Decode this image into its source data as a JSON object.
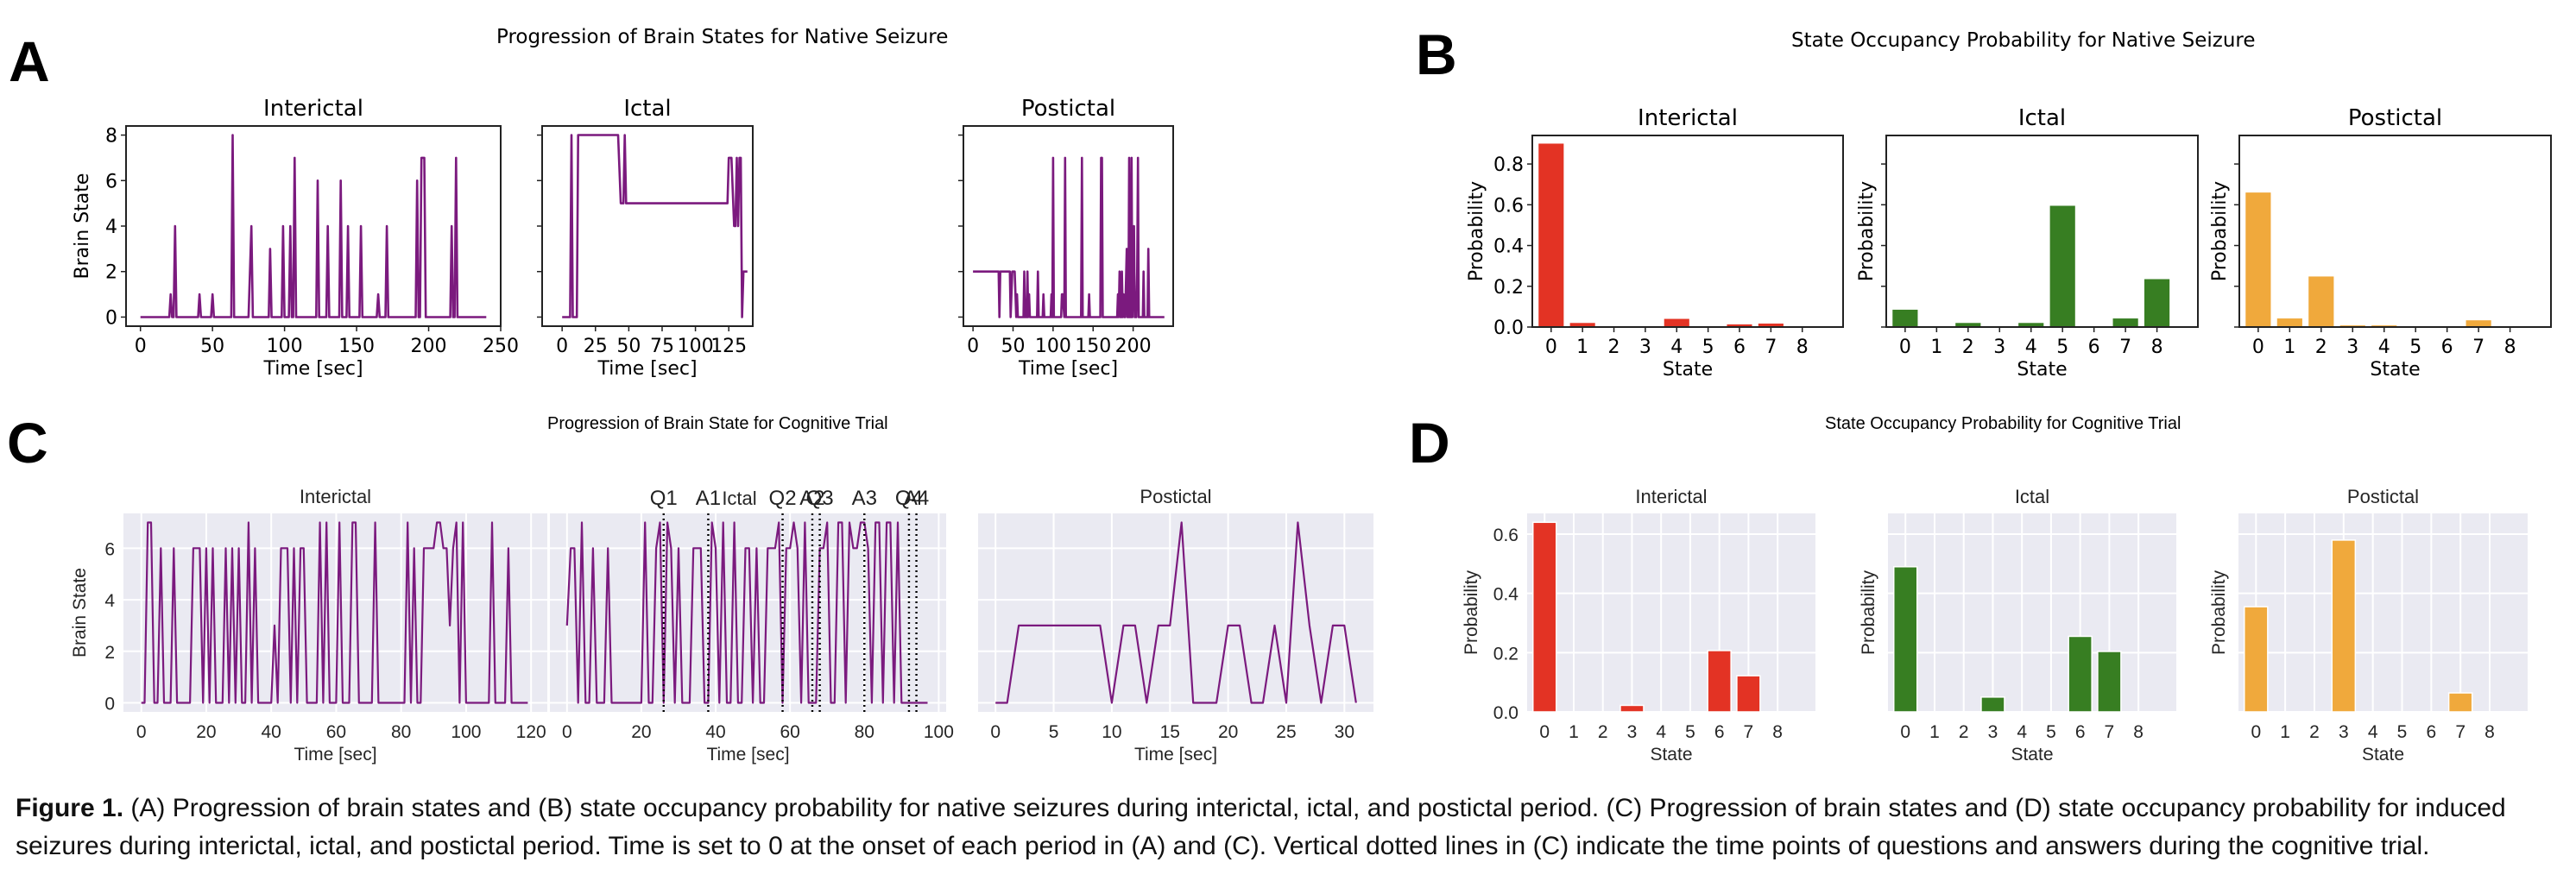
{
  "panels": {
    "A": {
      "letter": "A",
      "title": "Progression of Brain States for Native Seizure"
    },
    "B": {
      "letter": "B",
      "title": "State Occupancy Probability for Native Seizure"
    },
    "C": {
      "letter": "C",
      "title": "Progression of Brain State for Cognitive Trial"
    },
    "D": {
      "letter": "D",
      "title": "State Occupancy Probability for Cognitive Trial"
    }
  },
  "caption": {
    "label": "Figure 1.",
    "text": " (A) Progression of brain states and (B) state occupancy probability for native seizures during interictal, ictal, and postictal period. (C) Progression of brain states and (D) state occupancy probability for induced seizures during interictal, ictal, and postictal period. Time is set to 0 at the onset of each period in (A) and (C). Vertical dotted lines in (C) indicate the time points of questions and answers during the cognitive trial."
  },
  "colors": {
    "line": "#7b1a7e",
    "interictal": "#e33324",
    "ictal": "#377e22",
    "postictal": "#f0a93c",
    "seaborn_bg": "#eaeaf2"
  },
  "chart_data": [
    {
      "id": "A-interictal",
      "type": "line",
      "panel": "A",
      "title": "Interictal",
      "xlabel": "Time [sec]",
      "ylabel": "Brain State",
      "xlim": [
        -10,
        250
      ],
      "ylim": [
        -0.4,
        8.4
      ],
      "xticks": [
        0,
        50,
        100,
        150,
        200,
        250
      ],
      "yticks": [
        0,
        2,
        4,
        6,
        8
      ],
      "x": [
        0,
        20,
        21,
        22,
        23,
        24,
        25,
        40,
        41,
        42,
        49,
        50,
        51,
        63,
        64,
        65,
        75,
        77,
        78,
        89,
        90,
        91,
        98,
        99,
        100,
        103,
        104,
        105,
        106,
        107,
        108,
        122,
        123,
        124,
        129,
        130,
        131,
        138,
        139,
        140,
        143,
        144,
        145,
        152,
        153,
        154,
        164,
        165,
        166,
        170,
        171,
        172,
        191,
        192,
        193,
        194,
        195,
        196,
        197,
        198,
        215,
        216,
        217,
        218,
        219,
        220,
        240
      ],
      "y": [
        0,
        0,
        1,
        0,
        0,
        4,
        0,
        0,
        1,
        0,
        0,
        1,
        0,
        0,
        8,
        0,
        0,
        4,
        0,
        0,
        3,
        0,
        0,
        4,
        0,
        0,
        4,
        0,
        0,
        7,
        0,
        0,
        6,
        0,
        0,
        4,
        0,
        0,
        6,
        0,
        0,
        4,
        0,
        0,
        4,
        0,
        0,
        1,
        0,
        0,
        4,
        0,
        0,
        6,
        0,
        0,
        7,
        7,
        7,
        0,
        0,
        4,
        0,
        0,
        7,
        0,
        0
      ]
    },
    {
      "id": "A-ictal",
      "type": "line",
      "panel": "A",
      "title": "Ictal",
      "xlabel": "Time [sec]",
      "ylabel": "",
      "xlim": [
        -15,
        143
      ],
      "ylim": [
        -0.4,
        8.4
      ],
      "xticks": [
        0,
        25,
        50,
        75,
        100,
        125
      ],
      "yticks": [
        0,
        2,
        4,
        6,
        8
      ],
      "x": [
        0,
        6,
        7,
        8,
        11,
        12,
        42,
        44,
        46,
        47,
        48,
        124,
        125,
        127,
        129,
        130,
        131,
        132,
        133,
        134,
        135,
        136,
        137,
        139
      ],
      "y": [
        0,
        0,
        8,
        0,
        0,
        8,
        8,
        5,
        5,
        8,
        5,
        5,
        7,
        7,
        4,
        4,
        7,
        4,
        7,
        7,
        0,
        2,
        2,
        2
      ]
    },
    {
      "id": "A-postictal",
      "type": "line",
      "panel": "A",
      "title": "Postictal",
      "xlabel": "Time [sec]",
      "ylabel": "",
      "xlim": [
        -12,
        250
      ],
      "ylim": [
        -0.4,
        8.4
      ],
      "xticks": [
        0,
        50,
        100,
        150,
        200
      ],
      "yticks": [
        0,
        2,
        4,
        6,
        8
      ],
      "x": [
        0,
        32,
        33,
        34,
        46,
        47,
        49,
        52,
        54,
        55,
        56,
        57,
        63,
        64,
        65,
        67,
        68,
        69,
        70,
        71,
        72,
        80,
        81,
        82,
        87,
        88,
        89,
        97,
        98,
        99,
        100,
        101,
        102,
        110,
        111,
        112,
        114,
        115,
        116,
        135,
        136,
        137,
        144,
        145,
        146,
        159,
        160,
        161,
        162,
        180,
        181,
        182,
        183,
        184,
        185,
        186,
        187,
        188,
        189,
        190,
        192,
        193,
        194,
        195,
        196,
        197,
        198,
        199,
        201,
        202,
        203,
        204,
        205,
        206,
        207,
        208,
        211,
        212,
        213,
        214,
        218,
        219,
        220,
        224,
        225,
        226,
        239
      ],
      "y": [
        2,
        2,
        0,
        2,
        2,
        0,
        2,
        2,
        0,
        1,
        0,
        0,
        0,
        2,
        0,
        0,
        2,
        0,
        1,
        0,
        0,
        0,
        2,
        0,
        0,
        1,
        0,
        0,
        1,
        0,
        7,
        0,
        0,
        0,
        1,
        1,
        0,
        7,
        0,
        0,
        7,
        0,
        0,
        1,
        0,
        0,
        7,
        7,
        0,
        0,
        1,
        0,
        2,
        0,
        0,
        2,
        0,
        1,
        0,
        0,
        3,
        0,
        0,
        7,
        0,
        0,
        7,
        0,
        4,
        0,
        0,
        0,
        2,
        7,
        0,
        0,
        0,
        0,
        2,
        0,
        0,
        3,
        0,
        0,
        0,
        0,
        0
      ]
    },
    {
      "id": "B-interictal",
      "type": "bar",
      "panel": "B",
      "title": "Interictal",
      "categories": [
        "0",
        "1",
        "2",
        "3",
        "4",
        "5",
        "6",
        "7",
        "8"
      ],
      "values": [
        0.9,
        0.02,
        0.0,
        0.004,
        0.04,
        0.0,
        0.013,
        0.017,
        0.004
      ],
      "xlabel": "State",
      "ylabel": "Probability",
      "ylim": [
        0,
        0.94
      ],
      "yticks": [
        0.0,
        0.2,
        0.4,
        0.6,
        0.8
      ],
      "color": "#e33324"
    },
    {
      "id": "B-ictal",
      "type": "bar",
      "panel": "B",
      "title": "Ictal",
      "categories": [
        "0",
        "1",
        "2",
        "3",
        "4",
        "5",
        "6",
        "7",
        "8"
      ],
      "values": [
        0.085,
        0.0,
        0.02,
        0.0,
        0.02,
        0.595,
        0.0,
        0.042,
        0.235
      ],
      "xlabel": "State",
      "ylabel": "Probability",
      "ylim": [
        0,
        0.94
      ],
      "yticks": [
        0.0,
        0.2,
        0.4,
        0.6,
        0.8
      ],
      "color": "#377e22"
    },
    {
      "id": "B-postictal",
      "type": "bar",
      "panel": "B",
      "title": "Postictal",
      "categories": [
        "0",
        "1",
        "2",
        "3",
        "4",
        "5",
        "6",
        "7",
        "8"
      ],
      "values": [
        0.66,
        0.042,
        0.248,
        0.008,
        0.008,
        0.0,
        0.0,
        0.033,
        0.0
      ],
      "xlabel": "State",
      "ylabel": "Probability",
      "ylim": [
        0,
        0.94
      ],
      "yticks": [
        0.0,
        0.2,
        0.4,
        0.6,
        0.8
      ],
      "color": "#f0a93c"
    },
    {
      "id": "C-interictal",
      "type": "line",
      "panel": "C",
      "title": "Interictal",
      "xlabel": "Time [sec]",
      "ylabel": "Brain State",
      "xlim": [
        -5.5,
        125
      ],
      "ylim": [
        -0.35,
        7.35
      ],
      "xticks": [
        0,
        20,
        40,
        60,
        80,
        100,
        120
      ],
      "yticks": [
        0,
        2,
        4,
        6
      ],
      "x": [
        0,
        1,
        2,
        3,
        4,
        5,
        6,
        7,
        8,
        9,
        10,
        11,
        12,
        13,
        14,
        15,
        16,
        17,
        18,
        19,
        20,
        21,
        22,
        23,
        24,
        25,
        26,
        27,
        28,
        29,
        30,
        31,
        32,
        33,
        34,
        35,
        36,
        37,
        38,
        39,
        40,
        41,
        42,
        43,
        44,
        45,
        46,
        47,
        48,
        49,
        50,
        51,
        52,
        53,
        54,
        55,
        56,
        57,
        58,
        59,
        60,
        61,
        62,
        63,
        64,
        65,
        66,
        67,
        68,
        69,
        70,
        71,
        72,
        73,
        74,
        75,
        76,
        77,
        78,
        79,
        80,
        81,
        82,
        83,
        84,
        85,
        86,
        87,
        88,
        89,
        90,
        91,
        92,
        93,
        94,
        95,
        96,
        97,
        98,
        99,
        100,
        101,
        102,
        103,
        104,
        105,
        106,
        107,
        108,
        109,
        110,
        111,
        112,
        113,
        114,
        115,
        116,
        117,
        118,
        119
      ],
      "y": [
        0,
        0,
        7,
        7,
        0,
        0,
        6,
        0,
        0,
        0,
        6,
        0,
        0,
        0,
        0,
        0,
        6,
        6,
        6,
        0,
        6,
        0,
        6,
        0,
        0,
        0,
        6,
        0,
        6,
        0,
        6,
        0,
        0,
        7,
        0,
        6,
        0,
        0,
        0,
        0,
        0,
        3,
        0,
        6,
        6,
        6,
        0,
        6,
        0,
        6,
        6,
        0,
        0,
        0,
        0,
        7,
        0,
        7,
        0,
        0,
        0,
        7,
        0,
        0,
        0,
        7,
        7,
        0,
        0,
        0,
        0,
        0,
        7,
        0,
        0,
        0,
        0,
        0,
        0,
        0,
        0,
        0,
        7,
        0,
        6,
        0,
        0,
        6,
        6,
        6,
        6,
        7,
        7,
        6,
        6,
        3,
        6,
        7,
        0,
        7,
        0,
        0,
        0,
        0,
        0,
        0,
        0,
        0,
        7,
        0,
        0,
        0,
        0,
        6,
        0,
        0,
        0,
        0,
        0,
        0
      ]
    },
    {
      "id": "C-ictal",
      "type": "line",
      "panel": "C",
      "title": "Ictal",
      "xlabel": "Time [sec]",
      "ylabel": "",
      "xlim": [
        -4.6,
        102
      ],
      "ylim": [
        -0.35,
        7.35
      ],
      "xticks": [
        0,
        20,
        40,
        60,
        80,
        100
      ],
      "yticks": [
        0,
        2,
        4,
        6
      ],
      "x": [
        0,
        1,
        2,
        3,
        4,
        5,
        6,
        7,
        8,
        9,
        10,
        11,
        12,
        13,
        14,
        15,
        16,
        17,
        18,
        19,
        20,
        21,
        22,
        23,
        24,
        25,
        26,
        27,
        28,
        29,
        30,
        31,
        32,
        33,
        34,
        35,
        36,
        37,
        38,
        39,
        40,
        41,
        42,
        43,
        44,
        45,
        46,
        47,
        48,
        49,
        50,
        51,
        52,
        53,
        54,
        55,
        56,
        57,
        58,
        59,
        60,
        61,
        62,
        63,
        64,
        65,
        66,
        67,
        68,
        69,
        70,
        71,
        72,
        73,
        74,
        75,
        76,
        77,
        78,
        79,
        80,
        81,
        82,
        83,
        84,
        85,
        86,
        87,
        88,
        89,
        90,
        91,
        92,
        93,
        94,
        95,
        96,
        97
      ],
      "y": [
        3,
        6,
        6,
        0,
        7,
        0,
        0,
        6,
        0,
        0,
        0,
        6,
        0,
        0,
        0,
        0,
        0,
        0,
        0,
        0,
        0,
        7,
        0,
        0,
        6,
        7,
        0,
        7,
        6,
        0,
        6,
        0,
        0,
        0,
        6,
        6,
        6,
        0,
        0,
        7,
        6,
        0,
        7,
        0,
        0,
        7,
        0,
        0,
        6,
        6,
        0,
        6,
        0,
        0,
        6,
        6,
        6,
        7,
        0,
        6,
        6,
        7,
        6,
        0,
        7,
        0,
        0,
        0,
        6,
        6,
        7,
        0,
        0,
        7,
        7,
        0,
        7,
        6,
        6,
        7,
        7,
        6,
        0,
        7,
        7,
        0,
        7,
        7,
        0,
        7,
        0,
        0,
        0,
        0,
        0,
        0,
        0,
        0
      ],
      "events": [
        {
          "label": "Q1",
          "time": 26.0
        },
        {
          "label": "A1",
          "time": 38.0
        },
        {
          "label": "Q2",
          "time": 58.0
        },
        {
          "label": "A2",
          "time": 66.0
        },
        {
          "label": "Q3",
          "time": 68.0
        },
        {
          "label": "A3",
          "time": 80.0
        },
        {
          "label": "Q4",
          "time": 92.0
        },
        {
          "label": "A4",
          "time": 94.0
        }
      ]
    },
    {
      "id": "C-postictal",
      "type": "line",
      "panel": "C",
      "title": "Postictal",
      "xlabel": "Time [sec]",
      "ylabel": "",
      "xlim": [
        -1.5,
        32.5
      ],
      "ylim": [
        -0.35,
        7.35
      ],
      "xticks": [
        0,
        5,
        10,
        15,
        20,
        25,
        30
      ],
      "yticks": [
        0,
        2,
        4,
        6
      ],
      "x": [
        0,
        1,
        2,
        3,
        4,
        5,
        6,
        7,
        8,
        9,
        10,
        11,
        12,
        13,
        14,
        15,
        16,
        17,
        18,
        19,
        20,
        21,
        22,
        23,
        24,
        25,
        26,
        27,
        28,
        29,
        30,
        31
      ],
      "y": [
        0,
        0,
        3,
        3,
        3,
        3,
        3,
        3,
        3,
        3,
        0,
        3,
        3,
        0,
        3,
        3,
        7,
        0,
        0,
        0,
        3,
        3,
        0,
        0,
        3,
        0,
        7,
        3,
        0,
        3,
        3,
        0
      ]
    },
    {
      "id": "D-interictal",
      "type": "bar",
      "panel": "D",
      "title": "Interictal",
      "categories": [
        "0",
        "1",
        "2",
        "3",
        "4",
        "5",
        "6",
        "7",
        "8"
      ],
      "values": [
        0.64,
        0.0,
        0.0,
        0.022,
        0.0,
        0.0,
        0.207,
        0.122,
        0.0
      ],
      "xlabel": "State",
      "ylabel": "Probability",
      "ylim": [
        0,
        0.67
      ],
      "yticks": [
        0.0,
        0.2,
        0.4,
        0.6
      ],
      "color": "#e33324"
    },
    {
      "id": "D-ictal",
      "type": "bar",
      "panel": "D",
      "title": "Ictal",
      "categories": [
        "0",
        "1",
        "2",
        "3",
        "4",
        "5",
        "6",
        "7",
        "8"
      ],
      "values": [
        0.49,
        0.0,
        0.0,
        0.05,
        0.0,
        0.0,
        0.255,
        0.204,
        0.0
      ],
      "xlabel": "State",
      "ylabel": "Probability",
      "ylim": [
        0,
        0.67
      ],
      "yticks": [
        0.0,
        0.2,
        0.4,
        0.6
      ],
      "color": "#377e22"
    },
    {
      "id": "D-postictal",
      "type": "bar",
      "panel": "D",
      "title": "Postictal",
      "categories": [
        "0",
        "1",
        "2",
        "3",
        "4",
        "5",
        "6",
        "7",
        "8"
      ],
      "values": [
        0.355,
        0.0,
        0.0,
        0.58,
        0.0,
        0.0,
        0.0,
        0.064,
        0.0
      ],
      "xlabel": "State",
      "ylabel": "Probability",
      "ylim": [
        0,
        0.67
      ],
      "yticks": [
        0.0,
        0.2,
        0.4,
        0.6
      ],
      "color": "#f0a93c"
    }
  ]
}
